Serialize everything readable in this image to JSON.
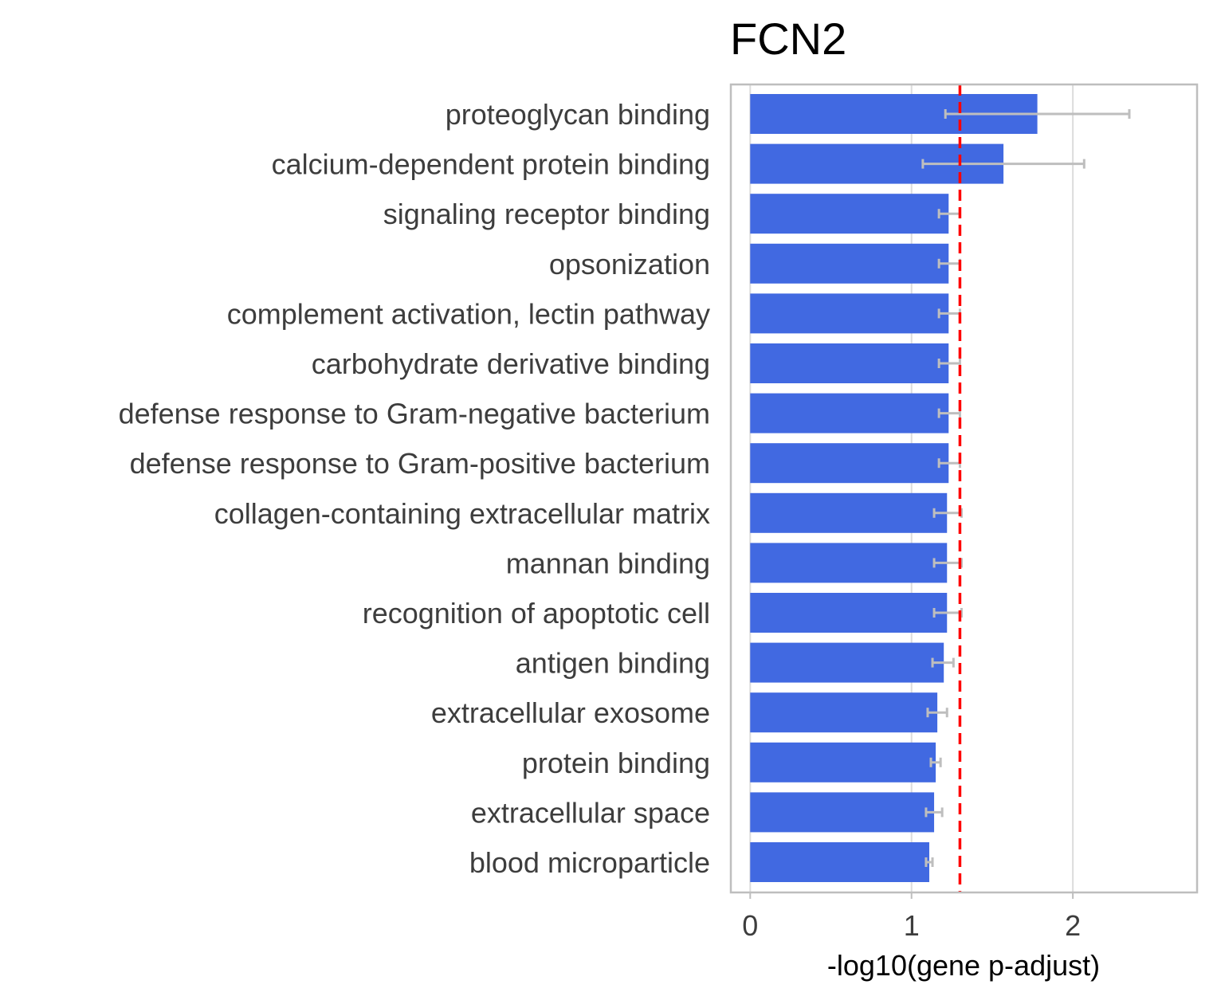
{
  "chart_data": {
    "type": "bar",
    "orientation": "horizontal",
    "title": "FCN2",
    "xlabel": "-log10(gene p-adjust)",
    "ylabel": "",
    "xlim": [
      -0.12,
      2.77
    ],
    "xticks": [
      0,
      1,
      2
    ],
    "grid": true,
    "legend": "none",
    "bar_color": "#4169E1",
    "error_color": "#BEBEBE",
    "threshold_color": "#FF0000",
    "threshold": 1.3,
    "categories": [
      "proteoglycan binding",
      "calcium-dependent protein binding",
      "signaling receptor binding",
      "opsonization",
      "complement activation, lectin pathway",
      "carbohydrate derivative binding",
      "defense response to Gram-negative bacterium",
      "defense response to Gram-positive bacterium",
      "collagen-containing extracellular matrix",
      "mannan binding",
      "recognition of apoptotic cell",
      "antigen binding",
      "extracellular exosome",
      "protein binding",
      "extracellular space",
      "blood microparticle"
    ],
    "values": [
      1.78,
      1.57,
      1.23,
      1.23,
      1.23,
      1.23,
      1.23,
      1.23,
      1.22,
      1.22,
      1.22,
      1.2,
      1.16,
      1.15,
      1.14,
      1.11
    ],
    "error_low": [
      1.21,
      1.07,
      1.17,
      1.17,
      1.17,
      1.17,
      1.17,
      1.17,
      1.14,
      1.14,
      1.14,
      1.13,
      1.1,
      1.12,
      1.09,
      1.09
    ],
    "error_high": [
      2.35,
      2.07,
      1.3,
      1.3,
      1.3,
      1.3,
      1.3,
      1.3,
      1.31,
      1.31,
      1.31,
      1.26,
      1.22,
      1.18,
      1.19,
      1.13
    ]
  }
}
